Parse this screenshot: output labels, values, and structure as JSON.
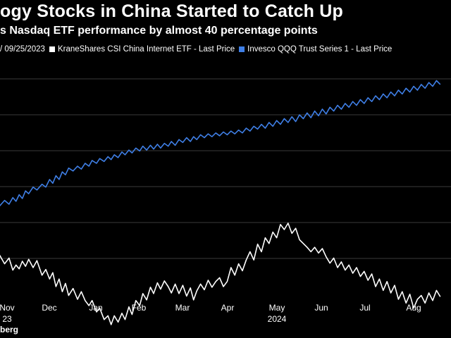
{
  "header": {
    "title": "ogy Stocks in China Started to Catch Up",
    "subtitle": "s Nasdaq ETF performance by almost 40 percentage points"
  },
  "legend": {
    "item0": "/ 09/25/2023",
    "item1": "KraneShares CSI China Internet ETF - Last Price",
    "item2": "Invesco QQQ Trust Series 1 - Last Price"
  },
  "source": "berg",
  "colors": {
    "background": "#000000",
    "kweb": "#ffffff",
    "qqq": "#3f7fe6",
    "grid": "#3a3a3a"
  },
  "chart_data": {
    "type": "line",
    "x_tick_labels": [
      {
        "label": "Nov",
        "sub": "23"
      },
      {
        "label": "Dec",
        "sub": ""
      },
      {
        "label": "Jan",
        "sub": ""
      },
      {
        "label": "Feb",
        "sub": ""
      },
      {
        "label": "Mar",
        "sub": ""
      },
      {
        "label": "Apr",
        "sub": ""
      },
      {
        "label": "May",
        "sub": "2024"
      },
      {
        "label": "Jun",
        "sub": ""
      },
      {
        "label": "Jul",
        "sub": ""
      },
      {
        "label": "Aug",
        "sub": ""
      }
    ],
    "grid": true,
    "series": [
      {
        "name": "KraneShares CSI China Internet ETF - Last Price",
        "color": "#ffffff",
        "values": [
          [
            -0.3,
            280
          ],
          [
            0.5,
            294
          ],
          [
            1.2,
            285
          ],
          [
            1.8,
            304
          ],
          [
            2.3,
            296
          ],
          [
            2.8,
            302
          ],
          [
            3.3,
            290
          ],
          [
            3.8,
            298
          ],
          [
            4.3,
            287
          ],
          [
            5,
            300
          ],
          [
            5.6,
            289
          ],
          [
            6.4,
            312
          ],
          [
            7,
            303
          ],
          [
            7.6,
            318
          ],
          [
            8.1,
            308
          ],
          [
            8.6,
            330
          ],
          [
            9.1,
            318
          ],
          [
            9.6,
            338
          ],
          [
            10.1,
            325
          ],
          [
            10.6,
            344
          ],
          [
            11.3,
            333
          ],
          [
            12,
            350
          ],
          [
            12.6,
            338
          ],
          [
            13.2,
            352
          ],
          [
            13.8,
            360
          ],
          [
            14.3,
            352
          ],
          [
            15,
            370
          ],
          [
            15.5,
            364
          ],
          [
            16.2,
            382
          ],
          [
            16.8,
            376
          ],
          [
            17.3,
            390
          ],
          [
            17.8,
            376
          ],
          [
            18.4,
            386
          ],
          [
            19,
            372
          ],
          [
            19.5,
            382
          ],
          [
            20.1,
            362
          ],
          [
            20.6,
            374
          ],
          [
            21.2,
            352
          ],
          [
            21.8,
            360
          ],
          [
            22.3,
            341
          ],
          [
            22.9,
            351
          ],
          [
            23.5,
            331
          ],
          [
            24,
            341
          ],
          [
            24.6,
            324
          ],
          [
            25.1,
            334
          ],
          [
            25.7,
            321
          ],
          [
            26.3,
            330
          ],
          [
            26.8,
            340
          ],
          [
            27.4,
            326
          ],
          [
            28,
            341
          ],
          [
            28.6,
            328
          ],
          [
            29.2,
            345
          ],
          [
            29.8,
            332
          ],
          [
            30.3,
            351
          ],
          [
            30.8,
            337
          ],
          [
            31.4,
            326
          ],
          [
            32,
            335
          ],
          [
            32.6,
            320
          ],
          [
            33.2,
            331
          ],
          [
            33.8,
            322
          ],
          [
            34.4,
            316
          ],
          [
            35,
            330
          ],
          [
            35.6,
            322
          ],
          [
            36.2,
            300
          ],
          [
            36.8,
            312
          ],
          [
            37.4,
            294
          ],
          [
            38,
            305
          ],
          [
            38.6,
            288
          ],
          [
            39.2,
            275
          ],
          [
            39.8,
            288
          ],
          [
            40.4,
            263
          ],
          [
            41,
            275
          ],
          [
            41.6,
            253
          ],
          [
            42.2,
            262
          ],
          [
            42.8,
            244
          ],
          [
            43.4,
            253
          ],
          [
            44,
            232
          ],
          [
            44.6,
            240
          ],
          [
            45.2,
            230
          ],
          [
            45.8,
            246
          ],
          [
            46.4,
            238
          ],
          [
            47,
            256
          ],
          [
            47.6,
            262
          ],
          [
            48.2,
            268
          ],
          [
            48.8,
            275
          ],
          [
            49.4,
            268
          ],
          [
            50,
            277
          ],
          [
            50.6,
            270
          ],
          [
            51.2,
            283
          ],
          [
            51.8,
            293
          ],
          [
            52.4,
            285
          ],
          [
            53,
            300
          ],
          [
            53.6,
            291
          ],
          [
            54.2,
            304
          ],
          [
            54.8,
            296
          ],
          [
            55.4,
            309
          ],
          [
            56,
            300
          ],
          [
            56.6,
            314
          ],
          [
            57.2,
            306
          ],
          [
            57.8,
            320
          ],
          [
            58.4,
            310
          ],
          [
            59,
            330
          ],
          [
            59.6,
            318
          ],
          [
            60.2,
            336
          ],
          [
            60.8,
            322
          ],
          [
            61.4,
            340
          ],
          [
            62,
            328
          ],
          [
            62.6,
            350
          ],
          [
            63.2,
            338
          ],
          [
            63.8,
            356
          ],
          [
            64.4,
            342
          ],
          [
            65,
            364
          ],
          [
            65.6,
            350
          ],
          [
            66.2,
            344
          ],
          [
            66.8,
            356
          ],
          [
            67.4,
            340
          ],
          [
            68,
            352
          ],
          [
            68.6,
            336
          ],
          [
            69.2,
            346
          ]
        ]
      },
      {
        "name": "Invesco QQQ Trust Series 1 - Last Price",
        "color": "#3f7fe6",
        "values": [
          [
            -0.3,
            -2
          ],
          [
            0.5,
            4
          ],
          [
            1.2,
            0
          ],
          [
            1.8,
            7
          ],
          [
            2.3,
            3
          ],
          [
            2.8,
            10
          ],
          [
            3.3,
            6
          ],
          [
            3.8,
            14
          ],
          [
            4.3,
            11
          ],
          [
            5,
            18
          ],
          [
            5.6,
            15
          ],
          [
            6.4,
            21
          ],
          [
            7,
            18
          ],
          [
            7.6,
            26
          ],
          [
            8.1,
            22
          ],
          [
            8.6,
            30
          ],
          [
            9.1,
            26
          ],
          [
            9.6,
            34
          ],
          [
            10.1,
            31
          ],
          [
            10.6,
            38
          ],
          [
            11.3,
            35
          ],
          [
            12,
            40
          ],
          [
            12.6,
            37
          ],
          [
            13.2,
            43
          ],
          [
            13.8,
            40
          ],
          [
            14.3,
            46
          ],
          [
            15,
            43
          ],
          [
            15.5,
            48
          ],
          [
            16.2,
            45
          ],
          [
            16.8,
            50
          ],
          [
            17.3,
            47
          ],
          [
            17.8,
            52
          ],
          [
            18.4,
            49
          ],
          [
            19,
            55
          ],
          [
            19.5,
            52
          ],
          [
            20.1,
            57
          ],
          [
            20.6,
            54
          ],
          [
            21.2,
            59
          ],
          [
            21.8,
            56
          ],
          [
            22.3,
            61
          ],
          [
            22.9,
            57
          ],
          [
            23.5,
            62
          ],
          [
            24,
            58
          ],
          [
            24.6,
            63
          ],
          [
            25.1,
            59
          ],
          [
            25.7,
            64
          ],
          [
            26.3,
            61
          ],
          [
            26.8,
            66
          ],
          [
            27.4,
            62
          ],
          [
            28,
            68
          ],
          [
            28.6,
            65
          ],
          [
            29.2,
            70
          ],
          [
            29.8,
            66
          ],
          [
            30.3,
            71
          ],
          [
            30.8,
            68
          ],
          [
            31.4,
            73
          ],
          [
            32,
            70
          ],
          [
            32.6,
            74
          ],
          [
            33.2,
            71
          ],
          [
            33.8,
            75
          ],
          [
            34.4,
            72
          ],
          [
            35,
            76
          ],
          [
            35.6,
            73
          ],
          [
            36.2,
            77
          ],
          [
            36.8,
            74
          ],
          [
            37.4,
            78
          ],
          [
            38,
            75
          ],
          [
            38.6,
            80
          ],
          [
            39.2,
            77
          ],
          [
            39.8,
            82
          ],
          [
            40.4,
            79
          ],
          [
            41,
            84
          ],
          [
            41.6,
            80
          ],
          [
            42.2,
            86
          ],
          [
            42.8,
            82
          ],
          [
            43.4,
            88
          ],
          [
            44,
            84
          ],
          [
            44.6,
            90
          ],
          [
            45.2,
            86
          ],
          [
            45.8,
            92
          ],
          [
            46.4,
            87
          ],
          [
            47,
            94
          ],
          [
            47.6,
            90
          ],
          [
            48.2,
            96
          ],
          [
            48.8,
            91
          ],
          [
            49.4,
            98
          ],
          [
            50,
            93
          ],
          [
            50.6,
            100
          ],
          [
            51.2,
            95
          ],
          [
            51.8,
            102
          ],
          [
            52.4,
            98
          ],
          [
            53,
            104
          ],
          [
            53.6,
            100
          ],
          [
            54.2,
            106
          ],
          [
            54.8,
            102
          ],
          [
            55.4,
            108
          ],
          [
            56,
            104
          ],
          [
            56.6,
            110
          ],
          [
            57.2,
            106
          ],
          [
            57.8,
            112
          ],
          [
            58.4,
            108
          ],
          [
            59,
            114
          ],
          [
            59.6,
            110
          ],
          [
            60.2,
            116
          ],
          [
            60.8,
            112
          ],
          [
            61.4,
            118
          ],
          [
            62,
            114
          ],
          [
            62.6,
            120
          ],
          [
            63.2,
            116
          ],
          [
            63.8,
            122
          ],
          [
            64.4,
            118
          ],
          [
            65,
            124
          ],
          [
            65.6,
            120
          ],
          [
            66.2,
            126
          ],
          [
            66.8,
            122
          ],
          [
            67.4,
            128
          ],
          [
            68,
            124
          ],
          [
            68.6,
            130
          ],
          [
            69.2,
            126
          ]
        ]
      }
    ]
  }
}
